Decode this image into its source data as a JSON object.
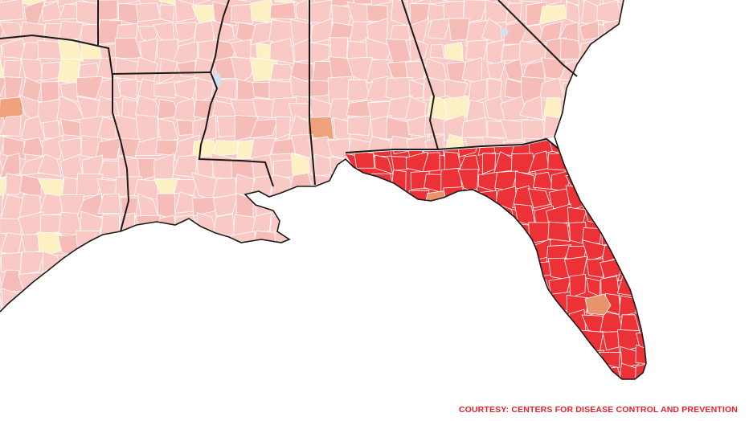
{
  "credit": {
    "text": "COURTESY: CENTERS FOR DISEASE CONTROL AND PREVENTION",
    "color": "#e8202a"
  },
  "map": {
    "subject": "county-level choropleth of the U.S. Gulf Coast / Southeast",
    "colors": {
      "background": "#ffffff",
      "water": "#ffffff",
      "light_fill": "#f9c9c6",
      "light_fill_alt": "#f6bcb8",
      "yellow_fill": "#fdf0c2",
      "orange_fill": "#f0a27c",
      "florida_fill": "#ed3237",
      "florida_orange_county": "#e8936b",
      "lake_blue": "#cfe2f2",
      "county_border": "#ffffff",
      "state_border": "#1a1a1a"
    }
  }
}
